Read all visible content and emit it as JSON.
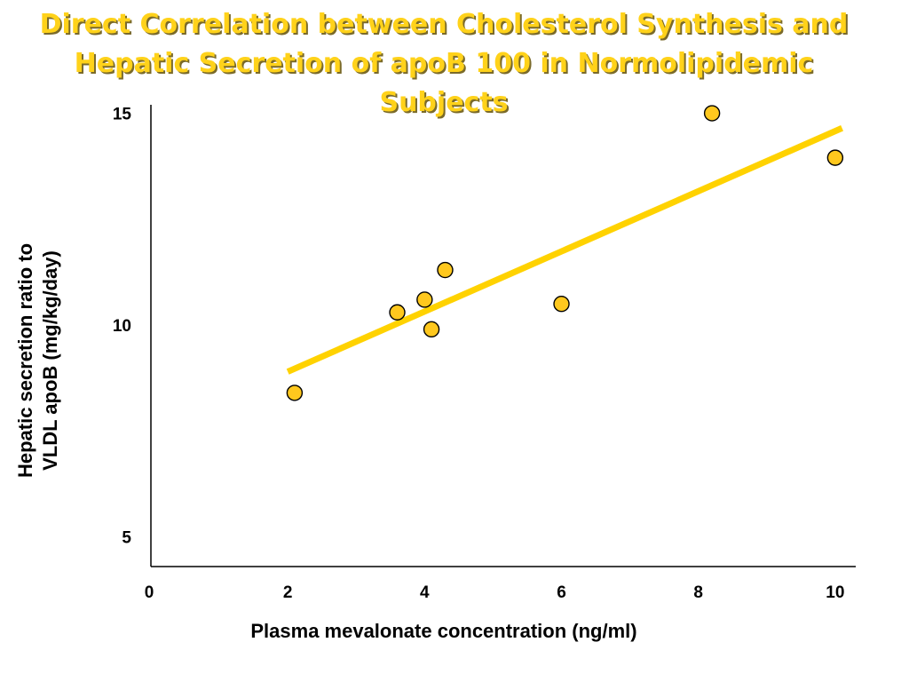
{
  "chart_data": {
    "type": "scatter",
    "title_lines": [
      "Direct Correlation between Cholesterol Synthesis and",
      "Hepatic Secretion of apoB 100 in Normolipidemic",
      "Subjects"
    ],
    "xlabel": "Plasma mevalonate concentration (ng/ml)",
    "ylabel_lines": [
      "Hepatic secretion ratio to",
      "VLDL apoB (mg/kg/day)"
    ],
    "xlim": [
      0,
      10.3
    ],
    "ylim": [
      4.3,
      15.2
    ],
    "x_ticks": [
      0,
      2,
      4,
      6,
      8,
      10
    ],
    "y_ticks": [
      5,
      10,
      15
    ],
    "grid": false,
    "legend": "none",
    "colors": {
      "marker_fill": "#FFC81E",
      "marker_edge": "#000000",
      "trendline": "#FFD200",
      "title": "#FFD21A"
    },
    "points": [
      {
        "x": 2.1,
        "y": 8.4
      },
      {
        "x": 3.6,
        "y": 10.3
      },
      {
        "x": 4.0,
        "y": 10.6
      },
      {
        "x": 4.1,
        "y": 9.9
      },
      {
        "x": 4.3,
        "y": 11.3
      },
      {
        "x": 6.0,
        "y": 10.5
      },
      {
        "x": 8.2,
        "y": 15.0
      },
      {
        "x": 10.0,
        "y": 13.95
      }
    ],
    "trendline": {
      "from": {
        "x": 2.0,
        "y": 8.9
      },
      "to": {
        "x": 10.1,
        "y": 14.65
      }
    }
  }
}
